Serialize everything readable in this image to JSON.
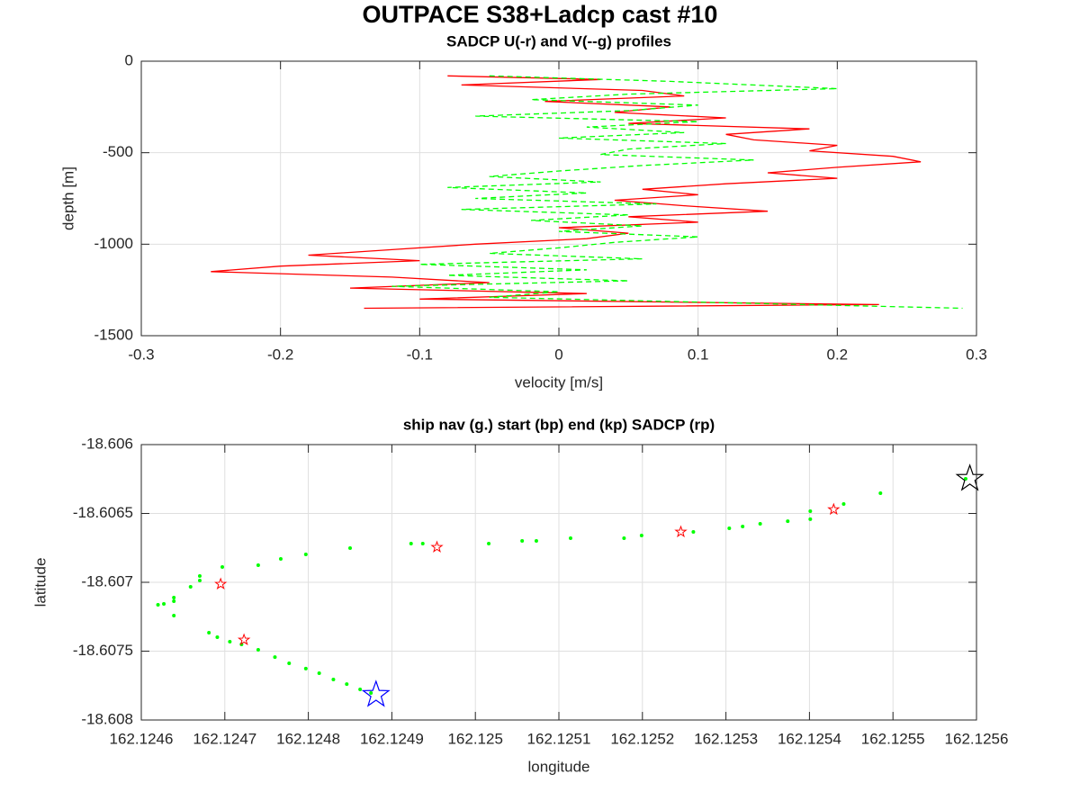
{
  "title": "OUTPACE S38+Ladcp cast #10",
  "chart_data": [
    {
      "type": "line",
      "title": "SADCP U(-r) and V(--g) profiles",
      "xlabel": "velocity [m/s]",
      "ylabel": "depth [m]",
      "xlim": [
        -0.3,
        0.3
      ],
      "xticks": [
        -0.3,
        -0.2,
        -0.1,
        0,
        0.1,
        0.2,
        0.3
      ],
      "ylim": [
        -1500,
        0
      ],
      "yticks": [
        -1500,
        -1000,
        -500,
        0
      ],
      "grid": true,
      "series": [
        {
          "color": "#ff0000",
          "dashed": false,
          "x": [
            -0.08,
            0.03,
            -0.07,
            0.06,
            0.09,
            -0.01,
            0.08,
            0.04,
            0.12,
            0.05,
            0.18,
            0.12,
            0.14,
            0.2,
            0.18,
            0.24,
            0.26,
            0.2,
            0.15,
            0.2,
            0.12,
            0.06,
            0.1,
            0.04,
            0.09,
            0.15,
            0.05,
            0.1,
            0.0,
            0.05,
            0.02,
            -0.06,
            -0.12,
            -0.18,
            -0.1,
            -0.2,
            -0.25,
            -0.12,
            -0.05,
            -0.15,
            0.02,
            -0.1,
            0.23,
            -0.14
          ],
          "y": [
            -80,
            -100,
            -130,
            -160,
            -190,
            -220,
            -250,
            -280,
            -310,
            -340,
            -370,
            -400,
            -430,
            -460,
            -490,
            -520,
            -550,
            -580,
            -610,
            -640,
            -670,
            -700,
            -730,
            -760,
            -790,
            -820,
            -850,
            -880,
            -910,
            -940,
            -970,
            -1000,
            -1030,
            -1060,
            -1090,
            -1120,
            -1150,
            -1180,
            -1210,
            -1240,
            -1270,
            -1300,
            -1330,
            -1350
          ]
        },
        {
          "color": "#00ff00",
          "dashed": true,
          "x": [
            -0.05,
            0.08,
            0.2,
            0.05,
            -0.02,
            0.1,
            0.05,
            -0.06,
            0.1,
            0.02,
            0.09,
            0.0,
            0.12,
            0.05,
            0.03,
            0.14,
            0.06,
            0.0,
            -0.05,
            0.03,
            -0.08,
            0.02,
            -0.06,
            0.07,
            -0.07,
            0.05,
            -0.02,
            0.06,
            0.0,
            0.1,
            0.04,
            0.0,
            -0.05,
            0.06,
            -0.1,
            0.02,
            -0.08,
            0.05,
            -0.12,
            0.0,
            -0.05,
            0.12,
            0.29
          ],
          "y": [
            -80,
            -110,
            -150,
            -180,
            -210,
            -240,
            -270,
            -300,
            -330,
            -360,
            -390,
            -420,
            -450,
            -480,
            -510,
            -540,
            -570,
            -600,
            -630,
            -660,
            -690,
            -720,
            -750,
            -780,
            -810,
            -840,
            -870,
            -900,
            -930,
            -960,
            -990,
            -1020,
            -1050,
            -1080,
            -1110,
            -1140,
            -1170,
            -1200,
            -1230,
            -1260,
            -1290,
            -1320,
            -1350
          ]
        }
      ]
    },
    {
      "type": "scatter",
      "title": "ship nav (g.) start (bp) end (kp) SADCP (rp)",
      "xlabel": "longitude",
      "ylabel": "latitude",
      "xlim": [
        162.1246,
        162.1256
      ],
      "xticks": [
        162.1246,
        162.1247,
        162.1248,
        162.1249,
        162.125,
        162.1251,
        162.1252,
        162.1253,
        162.1254,
        162.1255,
        162.1256
      ],
      "ylim": [
        -18.608,
        -18.606
      ],
      "yticks": [
        -18.608,
        -18.6075,
        -18.607,
        -18.6065,
        -18.606
      ],
      "grid": true,
      "series": [
        {
          "color": "#00ff00",
          "marker": "dot",
          "x": [
            162.12462,
            162.124627,
            162.124639,
            162.124639,
            162.124639,
            162.124659,
            162.12467,
            162.124681,
            162.124691,
            162.124706,
            162.12472,
            162.12474,
            162.12476,
            162.124777,
            162.124797,
            162.124813,
            162.12483,
            162.124846,
            162.124862,
            162.124875,
            162.12467,
            162.124697,
            162.12474,
            162.124767,
            162.124797,
            162.12485,
            162.124923,
            162.124937,
            162.125016,
            162.125056,
            162.125073,
            162.125114,
            162.125178,
            162.125199,
            162.125261,
            162.125304,
            162.12532,
            162.125341,
            162.125374,
            162.125401,
            162.125401,
            162.125441,
            162.125485,
            162.125587
          ],
          "y": [
            -18.607163,
            -18.607157,
            -18.607111,
            -18.607137,
            -18.607242,
            -18.607033,
            -18.606987,
            -18.607366,
            -18.607399,
            -18.607431,
            -18.607451,
            -18.60749,
            -18.607543,
            -18.607588,
            -18.607627,
            -18.60766,
            -18.607706,
            -18.607739,
            -18.607778,
            -18.607804,
            -18.606954,
            -18.606889,
            -18.606876,
            -18.60683,
            -18.606797,
            -18.606752,
            -18.606719,
            -18.606719,
            -18.606719,
            -18.606699,
            -18.606699,
            -18.60668,
            -18.60668,
            -18.60666,
            -18.606634,
            -18.606608,
            -18.606595,
            -18.606575,
            -18.606556,
            -18.606542,
            -18.606484,
            -18.606431,
            -18.606353,
            -18.606248
          ]
        },
        {
          "color": "#ff0000",
          "marker": "star",
          "x": [
            162.124695,
            162.124723,
            162.124954,
            162.125246,
            162.125429
          ],
          "y": [
            -18.607013,
            -18.607418,
            -18.606745,
            -18.606634,
            -18.606471
          ]
        },
        {
          "color": "#0000ff",
          "marker": "bigstar",
          "x": [
            162.124881
          ],
          "y": [
            -18.607817
          ]
        },
        {
          "color": "#000000",
          "marker": "bigstar",
          "x": [
            162.125592
          ],
          "y": [
            -18.606248
          ]
        }
      ]
    }
  ]
}
